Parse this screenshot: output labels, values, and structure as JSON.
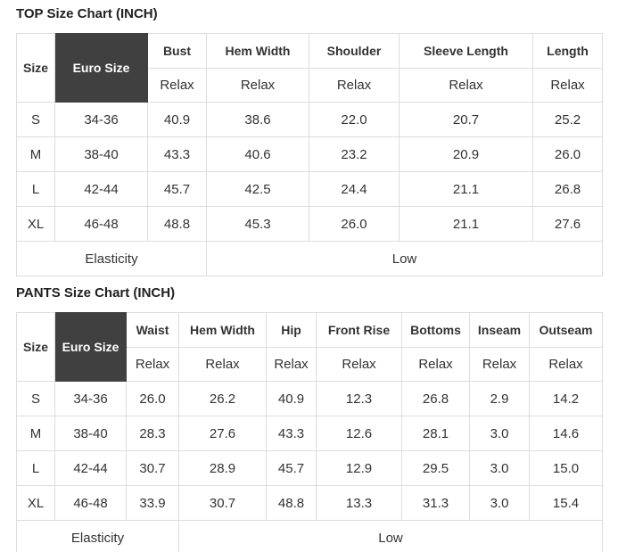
{
  "colors": {
    "title_text": "#212121",
    "cell_text": "#333333",
    "border": "#dddddd",
    "euro_header_bg": "#404040",
    "euro_header_text": "#ffffff"
  },
  "top_chart": {
    "title": "TOP Size Chart (INCH)",
    "corner": {
      "size": "Size",
      "euro": "Euro Size"
    },
    "columns": [
      {
        "label": "Bust",
        "fit": "Relax"
      },
      {
        "label": "Hem Width",
        "fit": "Relax"
      },
      {
        "label": "Shoulder",
        "fit": "Relax"
      },
      {
        "label": "Sleeve Length",
        "fit": "Relax"
      },
      {
        "label": "Length",
        "fit": "Relax"
      }
    ],
    "rows": [
      {
        "size": "S",
        "euro": "34-36",
        "values": [
          "40.9",
          "38.6",
          "22.0",
          "20.7",
          "25.2"
        ]
      },
      {
        "size": "M",
        "euro": "38-40",
        "values": [
          "43.3",
          "40.6",
          "23.2",
          "20.9",
          "26.0"
        ]
      },
      {
        "size": "L",
        "euro": "42-44",
        "values": [
          "45.7",
          "42.5",
          "24.4",
          "21.1",
          "26.8"
        ]
      },
      {
        "size": "XL",
        "euro": "46-48",
        "values": [
          "48.8",
          "45.3",
          "26.0",
          "21.1",
          "27.6"
        ]
      }
    ],
    "footer": {
      "label": "Elasticity",
      "value": "Low"
    }
  },
  "pants_chart": {
    "title": "PANTS Size Chart (INCH)",
    "corner": {
      "size": "Size",
      "euro": "Euro Size"
    },
    "columns": [
      {
        "label": "Waist",
        "fit": "Relax"
      },
      {
        "label": "Hem Width",
        "fit": "Relax"
      },
      {
        "label": "Hip",
        "fit": "Relax"
      },
      {
        "label": "Front Rise",
        "fit": "Relax"
      },
      {
        "label": "Bottoms",
        "fit": "Relax"
      },
      {
        "label": "Inseam",
        "fit": "Relax"
      },
      {
        "label": "Outseam",
        "fit": "Relax"
      }
    ],
    "rows": [
      {
        "size": "S",
        "euro": "34-36",
        "values": [
          "26.0",
          "26.2",
          "40.9",
          "12.3",
          "26.8",
          "2.9",
          "14.2"
        ]
      },
      {
        "size": "M",
        "euro": "38-40",
        "values": [
          "28.3",
          "27.6",
          "43.3",
          "12.6",
          "28.1",
          "3.0",
          "14.6"
        ]
      },
      {
        "size": "L",
        "euro": "42-44",
        "values": [
          "30.7",
          "28.9",
          "45.7",
          "12.9",
          "29.5",
          "3.0",
          "15.0"
        ]
      },
      {
        "size": "XL",
        "euro": "46-48",
        "values": [
          "33.9",
          "30.7",
          "48.8",
          "13.3",
          "31.3",
          "3.0",
          "15.4"
        ]
      }
    ],
    "footer": {
      "label": "Elasticity",
      "value": "Low"
    }
  }
}
